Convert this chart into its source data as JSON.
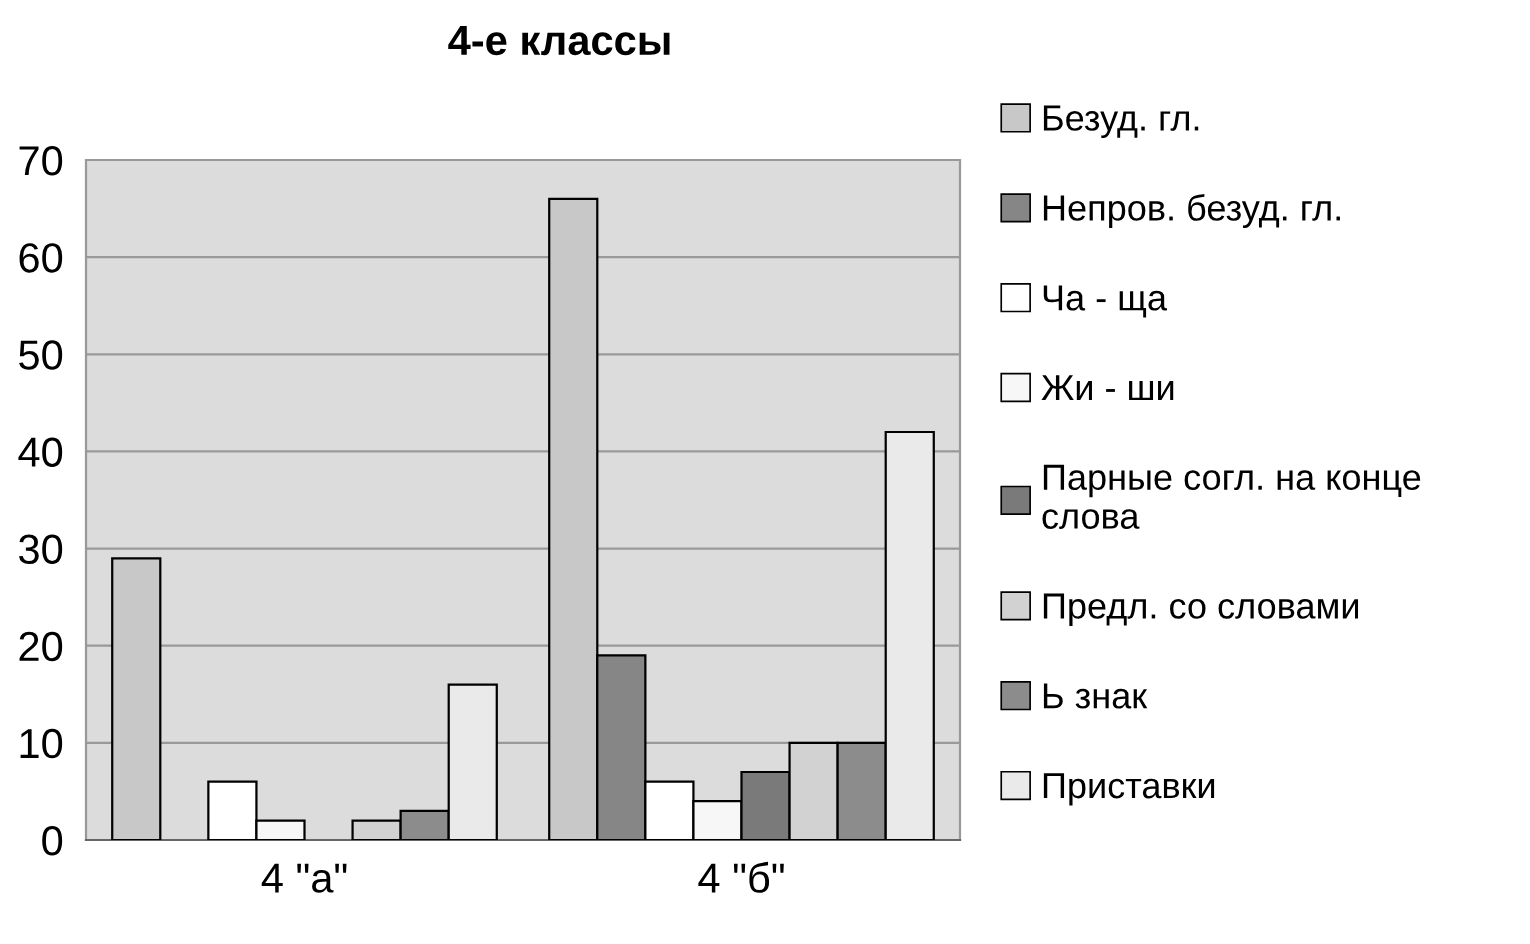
{
  "chart_data": {
    "type": "bar",
    "title": "4-е классы",
    "categories": [
      "4 \"а\"",
      "4 \"б\""
    ],
    "series": [
      {
        "name": "Безуд. гл.",
        "color": "#c8c8c8",
        "values": [
          29,
          66
        ]
      },
      {
        "name": "Непров. безуд. гл.",
        "color": "#868686",
        "values": [
          null,
          19
        ]
      },
      {
        "name": "Ча - ща",
        "color": "#ffffff",
        "values": [
          6,
          6
        ]
      },
      {
        "name": "Жи - ши",
        "color": "#f7f7f7",
        "values": [
          2,
          4
        ]
      },
      {
        "name": "Парные согл. на конце\nслова",
        "color": "#7a7a7a",
        "values": [
          null,
          7
        ]
      },
      {
        "name": "Предл. со словами",
        "color": "#d2d2d2",
        "values": [
          2,
          10
        ]
      },
      {
        "name": "Ь знак",
        "color": "#8c8c8c",
        "values": [
          3,
          10
        ]
      },
      {
        "name": "Приставки",
        "color": "#eaeaea",
        "values": [
          16,
          42
        ]
      }
    ],
    "ylim": [
      0,
      70
    ],
    "yticks": [
      0,
      10,
      20,
      30,
      40,
      50,
      60,
      70
    ],
    "grid": "y",
    "legend": "right"
  }
}
